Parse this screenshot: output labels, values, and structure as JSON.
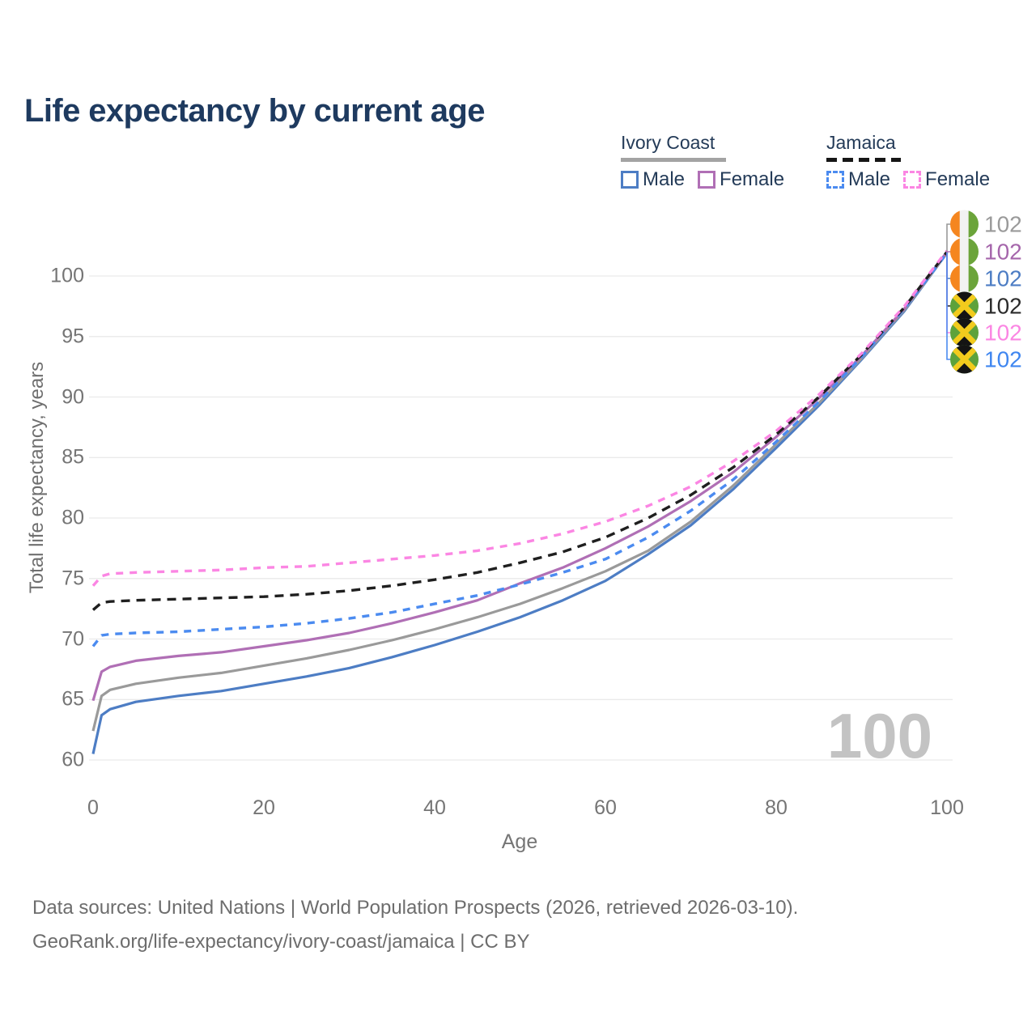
{
  "title": "Life expectancy by current age",
  "legend": {
    "groups": [
      {
        "name": "Ivory Coast",
        "line_style": "solid",
        "rule_color": "#a3a3a3",
        "items": [
          {
            "label": "Male",
            "color": "#4d7dc4"
          },
          {
            "label": "Female",
            "color": "#b06fb5"
          }
        ]
      },
      {
        "name": "Jamaica",
        "line_style": "dashed",
        "rule_color": "#161616",
        "items": [
          {
            "label": "Male",
            "color": "#4b8bf0"
          },
          {
            "label": "Female",
            "color": "#fb86e3"
          }
        ]
      }
    ]
  },
  "chart_data": {
    "type": "line",
    "title": "Life expectancy by current age",
    "xlabel": "Age",
    "ylabel": "Total life expectancy, years",
    "x_ticks": [
      0,
      20,
      40,
      60,
      80,
      100
    ],
    "y_ticks": [
      60,
      65,
      70,
      75,
      80,
      85,
      90,
      95,
      100
    ],
    "xlim": [
      0,
      100
    ],
    "ylim": [
      58.5,
      103.5
    ],
    "grid": "horizontal",
    "legend_position": "top-right",
    "watermark": "100",
    "ages": [
      0,
      1,
      2,
      5,
      10,
      15,
      20,
      25,
      30,
      35,
      40,
      45,
      50,
      55,
      60,
      65,
      70,
      75,
      80,
      85,
      90,
      95,
      100
    ],
    "series": [
      {
        "id": "ic_both",
        "name": "Ivory Coast Both sexes",
        "country": "Ivory Coast",
        "flag": "ci",
        "color": "#9a9a9a",
        "label_color": "#9a9a9a",
        "dash": false,
        "end_label": "102",
        "values": [
          62.4,
          65.3,
          65.8,
          66.3,
          66.8,
          67.2,
          67.8,
          68.4,
          69.1,
          69.9,
          70.8,
          71.8,
          72.9,
          74.2,
          75.6,
          77.3,
          79.7,
          82.7,
          86.1,
          89.5,
          93.2,
          97.2,
          101.9
        ]
      },
      {
        "id": "ic_female",
        "name": "Ivory Coast Female",
        "country": "Ivory Coast",
        "flag": "ci",
        "color": "#b06fb5",
        "label_color": "#a566ab",
        "dash": false,
        "end_label": "102",
        "values": [
          64.9,
          67.3,
          67.7,
          68.2,
          68.6,
          68.9,
          69.4,
          69.9,
          70.5,
          71.3,
          72.2,
          73.2,
          74.6,
          75.9,
          77.5,
          79.3,
          81.4,
          83.8,
          86.7,
          89.9,
          93.4,
          97.3,
          102.0
        ]
      },
      {
        "id": "ic_male",
        "name": "Ivory Coast Male",
        "country": "Ivory Coast",
        "flag": "ci",
        "color": "#4d7dc4",
        "label_color": "#4d7dc4",
        "dash": false,
        "end_label": "102",
        "values": [
          60.5,
          63.7,
          64.2,
          64.8,
          65.3,
          65.7,
          66.3,
          66.9,
          67.6,
          68.5,
          69.5,
          70.6,
          71.8,
          73.2,
          74.8,
          77.0,
          79.4,
          82.4,
          85.8,
          89.3,
          93.1,
          97.1,
          101.9
        ]
      },
      {
        "id": "jam_both",
        "name": "Jamaica Both sexes",
        "country": "Jamaica",
        "flag": "jm",
        "color": "#1f1f1f",
        "label_color": "#2b2b2b",
        "dash": true,
        "end_label": "102",
        "values": [
          72.4,
          73.0,
          73.1,
          73.2,
          73.3,
          73.4,
          73.5,
          73.7,
          74.0,
          74.4,
          74.9,
          75.5,
          76.3,
          77.2,
          78.4,
          80.0,
          81.9,
          84.2,
          86.9,
          90.0,
          93.5,
          97.4,
          102.0
        ]
      },
      {
        "id": "jam_female",
        "name": "Jamaica Female",
        "country": "Jamaica",
        "flag": "jm",
        "color": "#fb86e3",
        "label_color": "#fb86e3",
        "dash": true,
        "end_label": "102",
        "values": [
          74.4,
          75.2,
          75.4,
          75.5,
          75.6,
          75.7,
          75.9,
          76.0,
          76.3,
          76.6,
          76.9,
          77.3,
          77.9,
          78.7,
          79.7,
          81.0,
          82.6,
          84.7,
          87.2,
          90.2,
          93.6,
          97.5,
          102.1
        ]
      },
      {
        "id": "jam_male",
        "name": "Jamaica Male",
        "country": "Jamaica",
        "flag": "jm",
        "color": "#4b8bf0",
        "label_color": "#3f86f0",
        "dash": true,
        "end_label": "102",
        "values": [
          69.4,
          70.3,
          70.4,
          70.5,
          70.6,
          70.8,
          71.0,
          71.3,
          71.7,
          72.2,
          72.9,
          73.6,
          74.5,
          75.5,
          76.6,
          78.4,
          80.6,
          83.2,
          86.3,
          89.6,
          93.3,
          97.3,
          101.9
        ]
      }
    ]
  },
  "footer": {
    "line1": "Data sources: United Nations | World Population Prospects (2026, retrieved 2026-03-10).",
    "line2": "GeoRank.org/life-expectancy/ivory-coast/jamaica | CC BY"
  }
}
